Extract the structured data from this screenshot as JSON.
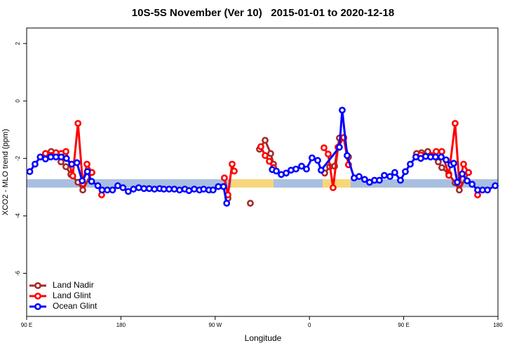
{
  "chart_data": {
    "type": "line",
    "title": "10S-5S November (Ver 10)   2015-01-01 to 2020-12-18",
    "x_label": "Longitude",
    "y_label": "XCO2 - MLO trend (ppm)",
    "xlim": [
      90,
      540
    ],
    "ylim": [
      -7.5,
      2.54
    ],
    "xticks": [
      {
        "value": 90,
        "label": "90 E"
      },
      180,
      {
        "value": 270,
        "label": "90 W"
      },
      {
        "value": 360,
        "label": "0"
      },
      {
        "value": 450,
        "label": "90 E"
      },
      {
        "value": 540,
        "label": "180"
      }
    ],
    "yticks": [
      2,
      0,
      -2,
      -4,
      -6
    ],
    "legend": "bottom-left",
    "series": [
      {
        "name": "Land Nadir",
        "color": "#a52a2a",
        "x": [
          108,
          113.4,
          118,
          122.8,
          127.5,
          132.2,
          139,
          143.6,
          152.3,
          null,
          282.2,
          null,
          303.6,
          null,
          312.3,
          317.7,
          323,
          325.7,
          null,
          374.6,
          379.3,
          384,
          388.6,
          392.7,
          397.3,
          null,
          462.3,
          467,
          473,
          483,
          486.4,
          493.1,
          499.1,
          503.1,
          511.9
        ],
        "values": [
          -1.83,
          -1.76,
          -1.85,
          -2.12,
          -2.29,
          -2.56,
          -2.83,
          -3.1,
          -2.49,
          null,
          -3.39,
          null,
          -3.56,
          null,
          -1.68,
          -1.37,
          -1.83,
          -2.2,
          null,
          -2.51,
          -2.29,
          -2.27,
          -1.29,
          -1.29,
          -1.95,
          null,
          -1.83,
          -1.8,
          -1.76,
          -2.12,
          -2.32,
          -2.54,
          -2.85,
          -3.1,
          -2.49
        ]
      },
      {
        "name": "Land Glint",
        "color": "#ff0000",
        "x": [
          108,
          118,
          123,
          127.5,
          134,
          139,
          143.6,
          147.6,
          152.3,
          null,
          161.6,
          null,
          278.8,
          282.2,
          286.2,
          288.2,
          null,
          313.6,
          317.7,
          321.7,
          325.7,
          null,
          373.9,
          377.9,
          382.6,
          387.3,
          392.7,
          397.3,
          null,
          466.3,
          476.4,
          481,
          486.4,
          493.1,
          499.1,
          503.1,
          507.2,
          511.9,
          null,
          520.6
        ],
        "values": [
          -1.83,
          -1.8,
          -1.83,
          -1.76,
          -2.61,
          -0.78,
          -2.88,
          -2.2,
          -2.49,
          null,
          -3.27,
          null,
          -2.68,
          -3.27,
          -2.2,
          -2.44,
          null,
          -1.59,
          -1.9,
          -2.1,
          -2.32,
          null,
          -1.63,
          -1.85,
          -3.02,
          -1.61,
          -1.27,
          -2.22,
          null,
          -1.88,
          -1.9,
          -1.76,
          -1.76,
          -2.59,
          -0.78,
          -2.88,
          -2.2,
          -2.49,
          null,
          -3.27
        ]
      },
      {
        "name": "Ocean Glint",
        "color": "#0000ff",
        "x": [
          93,
          98,
          103,
          108,
          113,
          118,
          123,
          128,
          133,
          138,
          143,
          148,
          152,
          158,
          162,
          167,
          172,
          177,
          182,
          187,
          192,
          197,
          202,
          207,
          212,
          217,
          221,
          226,
          231,
          236,
          241,
          245,
          250,
          255,
          259,
          264,
          268,
          273,
          278,
          281,
          null,
          324.5,
          328.4,
          333.1,
          337.8,
          342.4,
          347.1,
          352.5,
          357.2,
          362.5,
          367.9,
          371.2,
          388.6,
          391.3,
          396,
          402.7,
          407.4,
          412.7,
          417.4,
          422.1,
          426.8,
          431.5,
          436.9,
          441.5,
          446.9,
          451.6,
          456.3,
          461.6,
          466.3,
          471,
          475.7,
          480.4,
          485.8,
          490.5,
          495.1,
          497.8,
          501.2,
          505.9,
          510.6,
          515.3,
          520.6,
          525.3,
          530,
          537.4
        ],
        "values": [
          -2.46,
          -2.2,
          -1.95,
          -2.02,
          -1.95,
          -1.95,
          -1.95,
          -2,
          -2.2,
          -2.15,
          -2.78,
          -2.46,
          -2.8,
          -2.95,
          -3.1,
          -3.1,
          -3.1,
          -2.95,
          -3.02,
          -3.15,
          -3.07,
          -3.02,
          -3.05,
          -3.05,
          -3.07,
          -3.05,
          -3.07,
          -3.07,
          -3.07,
          -3.1,
          -3.07,
          -3.12,
          -3.07,
          -3.1,
          -3.07,
          -3.1,
          -3.1,
          -2.98,
          -2.98,
          -3.56,
          null,
          -2.39,
          -2.44,
          -2.56,
          -2.51,
          -2.41,
          -2.37,
          -2.27,
          -2.37,
          -1.98,
          -2.07,
          -2.41,
          -1.61,
          -0.32,
          -1.9,
          -2.68,
          -2.63,
          -2.73,
          -2.83,
          -2.76,
          -2.76,
          -2.59,
          -2.63,
          -2.49,
          -2.76,
          -2.46,
          -2.2,
          -1.95,
          -2,
          -1.93,
          -1.95,
          -1.95,
          -1.95,
          -2.05,
          -2.22,
          -2.17,
          -2.83,
          -2.54,
          -2.78,
          -2.9,
          -3.1,
          -3.1,
          -3.1,
          -2.95
        ]
      }
    ]
  }
}
